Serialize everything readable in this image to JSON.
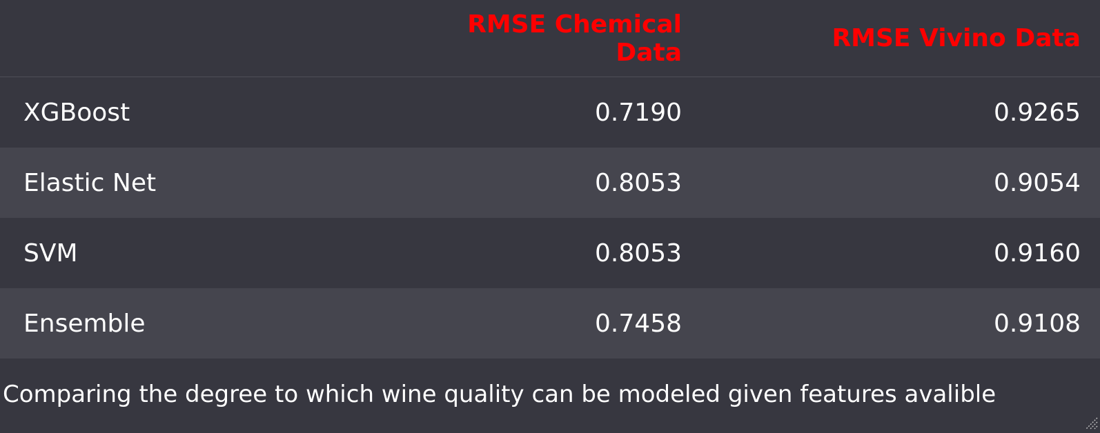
{
  "table": {
    "columns": [
      "",
      "RMSE Chemical Data",
      "RMSE Vivino Data"
    ],
    "rows": [
      {
        "model": "XGBoost",
        "chemical": "0.7190",
        "vivino": "0.9265"
      },
      {
        "model": "Elastic Net",
        "chemical": "0.8053",
        "vivino": "0.9054"
      },
      {
        "model": "SVM",
        "chemical": "0.8053",
        "vivino": "0.9160"
      },
      {
        "model": "Ensemble",
        "chemical": "0.7458",
        "vivino": "0.9108"
      }
    ]
  },
  "caption": "Comparing the degree to which wine quality can be modeled given features avalible",
  "colors": {
    "background": "#373740",
    "row_alt": "#45454e",
    "header_text": "#ff0000",
    "body_text": "#ffffff"
  },
  "icons": {
    "corner": "resize-handle-icon"
  }
}
